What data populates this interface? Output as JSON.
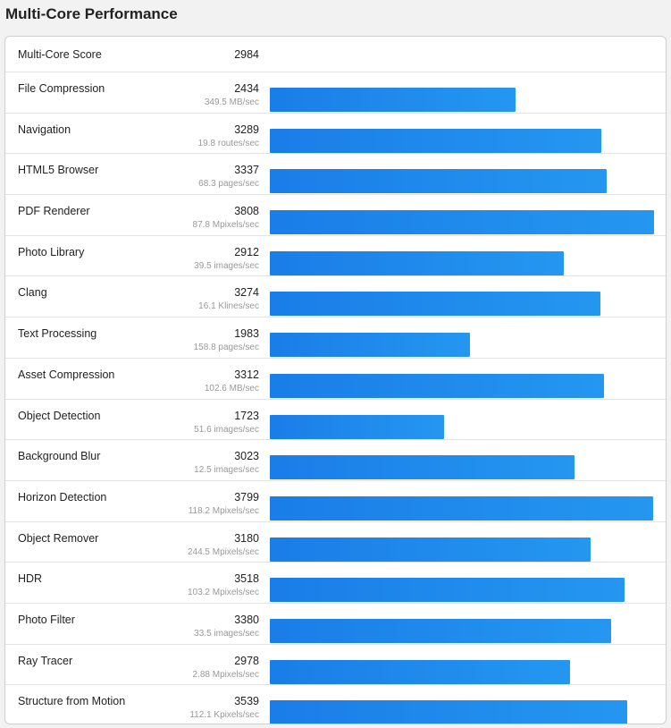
{
  "page_title": "Multi-Core Performance",
  "overall": {
    "label": "Multi-Core Score",
    "score": "2984"
  },
  "chart_data": {
    "type": "bar",
    "orientation": "horizontal",
    "bar_color": "#1f8aec",
    "categories": [
      "File Compression",
      "Navigation",
      "HTML5 Browser",
      "PDF Renderer",
      "Photo Library",
      "Clang",
      "Text Processing",
      "Asset Compression",
      "Object Detection",
      "Background Blur",
      "Horizon Detection",
      "Object Remover",
      "HDR",
      "Photo Filter",
      "Ray Tracer",
      "Structure from Motion"
    ],
    "values": [
      2434,
      3289,
      3337,
      3808,
      2912,
      3274,
      1983,
      3312,
      1723,
      3023,
      3799,
      3180,
      3518,
      3380,
      2978,
      3539
    ],
    "rates": [
      "349.5 MB/sec",
      "19.8 routes/sec",
      "68.3 pages/sec",
      "87.8 Mpixels/sec",
      "39.5 images/sec",
      "16.1 Klines/sec",
      "158.8 pages/sec",
      "102.6 MB/sec",
      "51.6 images/sec",
      "12.5 images/sec",
      "118.2 Mpixels/sec",
      "244.5 Mpixels/sec",
      "103.2 Mpixels/sec",
      "33.5 images/sec",
      "2.88 Mpixels/sec",
      "112.1 Kpixels/sec"
    ],
    "xlim": [
      0,
      3808
    ]
  }
}
